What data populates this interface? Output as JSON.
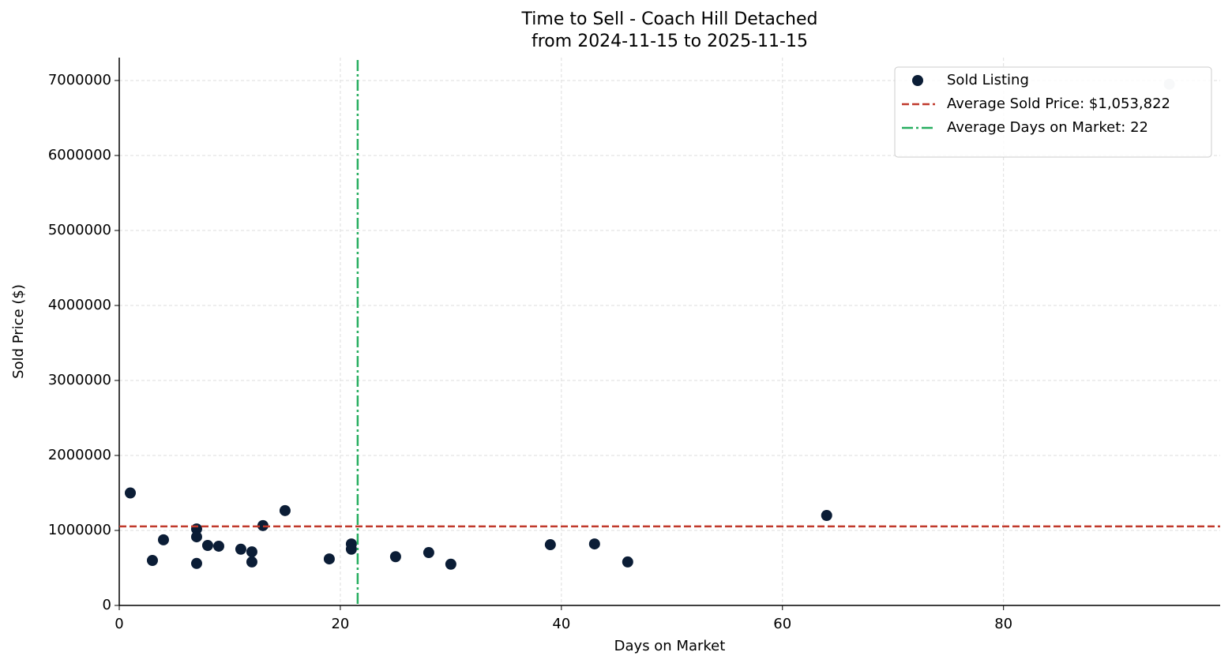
{
  "chart_data": {
    "type": "scatter",
    "title": "Time to Sell - Coach Hill Detached",
    "subtitle": "from 2024-11-15 to 2025-11-15",
    "x_label": "Days on Market",
    "y_label": "Sold Price ($)",
    "series": [
      {
        "name": "Sold Listing",
        "color": "#0b1d36",
        "x": [
          1,
          3,
          4,
          7,
          7,
          7,
          8,
          9,
          11,
          12,
          12,
          13,
          15,
          19,
          21,
          21,
          25,
          28,
          30,
          39,
          43,
          46,
          64,
          95
        ],
        "values": [
          1500000,
          600000,
          875000,
          1020000,
          915000,
          560000,
          800000,
          790000,
          750000,
          715000,
          580000,
          1065000,
          1265000,
          620000,
          820000,
          750000,
          650000,
          705000,
          550000,
          810000,
          820000,
          580000,
          1200000,
          6950000
        ],
        "point_colors": [
          "#0b1d36",
          "#0b1d36",
          "#0b1d36",
          "#0b1d36",
          "#0b1d36",
          "#0b1d36",
          "#0b1d36",
          "#0b1d36",
          "#0b1d36",
          "#0b1d36",
          "#0b1d36",
          "#0b1d36",
          "#0b1d36",
          "#0b1d36",
          "#0b1d36",
          "#0b1d36",
          "#0b1d36",
          "#0b1d36",
          "#0b1d36",
          "#0b1d36",
          "#0b1d36",
          "#0b1d36",
          "#0b1d36",
          "#c8d0d8"
        ]
      }
    ],
    "hlines": [
      {
        "name": "Average Sold Price: $1,053,822",
        "value": 1053822,
        "color": "#c0392b"
      }
    ],
    "vlines": [
      {
        "name": "Average Days on Market: 22",
        "value": 21.57,
        "color": "#27ae60"
      }
    ],
    "xlim": [
      0,
      99.6
    ],
    "ylim": [
      0,
      7305000
    ],
    "xticks": [
      0,
      20,
      40,
      60,
      80
    ],
    "yticks": [
      0,
      1000000,
      2000000,
      3000000,
      4000000,
      5000000,
      6000000,
      7000000
    ],
    "grid": true,
    "legend": "upper right"
  }
}
